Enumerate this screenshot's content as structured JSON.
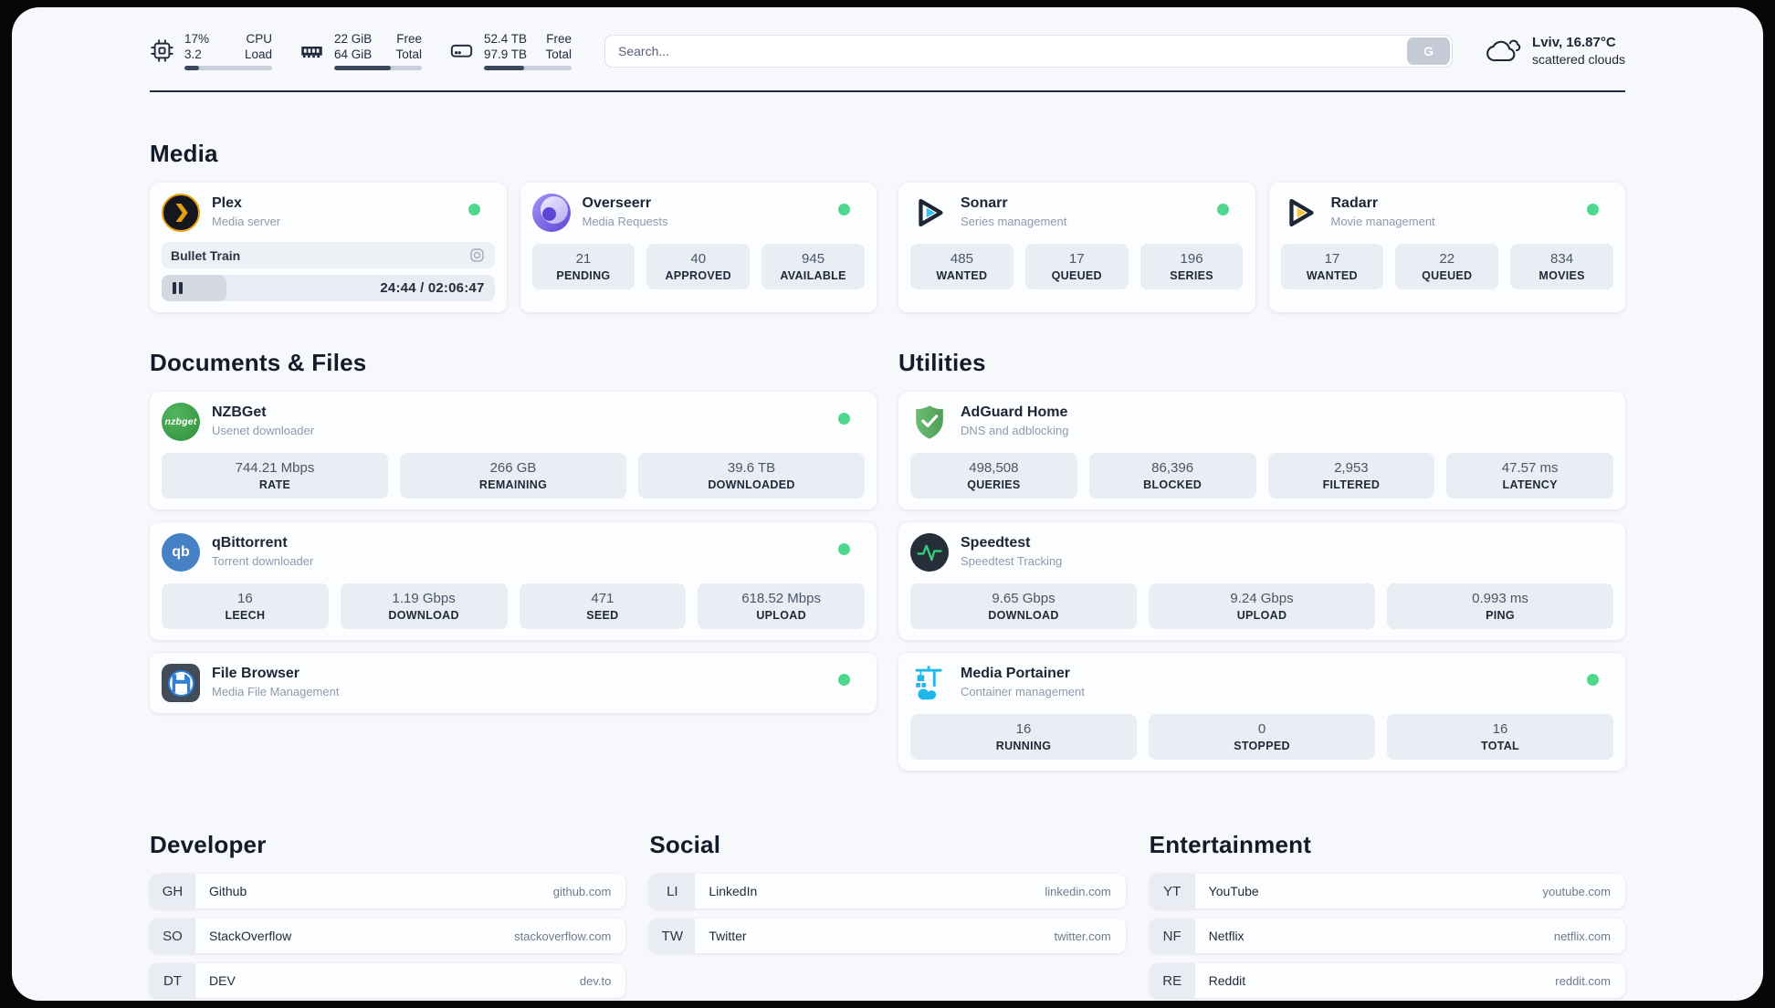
{
  "colors": {
    "frame_bg": "#060606",
    "page_bg": "#f7f8fb",
    "card_bg": "#fcfdff",
    "tile_bg": "#e9edf4",
    "text_primary": "#1c2534",
    "text_secondary": "#9099ab",
    "status_online": "#4fd78d",
    "accent_plex": "#e8a00c",
    "accent_overseerr": "#6a55dd",
    "accent_sonarr": "#32c3f2",
    "accent_radarr": "#ffc230",
    "accent_nzbget": "#3f9e43",
    "accent_qbittorrent": "#4581c4",
    "accent_adguard": "#5fb066",
    "accent_speedtest": "#35d07f",
    "accent_portainer": "#1fb6ea"
  },
  "header": {
    "system_stats": [
      {
        "icon": "cpu-icon",
        "values": [
          "17%",
          "3.2"
        ],
        "labels": [
          "CPU",
          "Load"
        ],
        "progress_pct": 17
      },
      {
        "icon": "ram-icon",
        "values": [
          "22 GiB",
          "64 GiB"
        ],
        "labels": [
          "Free",
          "Total"
        ],
        "progress_pct": 65
      },
      {
        "icon": "disk-icon",
        "values": [
          "52.4 TB",
          "97.9 TB"
        ],
        "labels": [
          "Free",
          "Total"
        ],
        "progress_pct": 46
      }
    ],
    "search": {
      "placeholder": "Search...",
      "button_label": "G"
    },
    "weather": {
      "headline": "Lviv, 16.87°C",
      "condition": "scattered clouds"
    }
  },
  "sections": {
    "media": {
      "title": "Media",
      "plex": {
        "name": "Plex",
        "description": "Media server",
        "status": "online",
        "now_playing": {
          "title": "Bullet Train",
          "time_display": "24:44 / 02:06:47",
          "progress_pct": 19.5,
          "state": "paused"
        }
      },
      "overseerr": {
        "name": "Overseerr",
        "description": "Media Requests",
        "status": "online",
        "stats": [
          {
            "value": "21",
            "label": "PENDING"
          },
          {
            "value": "40",
            "label": "APPROVED"
          },
          {
            "value": "945",
            "label": "AVAILABLE"
          }
        ]
      },
      "sonarr": {
        "name": "Sonarr",
        "description": "Series management",
        "status": "online",
        "stats": [
          {
            "value": "485",
            "label": "WANTED"
          },
          {
            "value": "17",
            "label": "QUEUED"
          },
          {
            "value": "196",
            "label": "SERIES"
          }
        ]
      },
      "radarr": {
        "name": "Radarr",
        "description": "Movie management",
        "status": "online",
        "stats": [
          {
            "value": "17",
            "label": "WANTED"
          },
          {
            "value": "22",
            "label": "QUEUED"
          },
          {
            "value": "834",
            "label": "MOVIES"
          }
        ]
      }
    },
    "documents": {
      "title": "Documents & Files",
      "nzbget": {
        "name": "NZBGet",
        "description": "Usenet downloader",
        "status": "online",
        "icon_text": "nzbget",
        "stats": [
          {
            "value": "744.21 Mbps",
            "label": "RATE"
          },
          {
            "value": "266 GB",
            "label": "REMAINING"
          },
          {
            "value": "39.6 TB",
            "label": "DOWNLOADED"
          }
        ]
      },
      "qbittorrent": {
        "name": "qBittorrent",
        "description": "Torrent downloader",
        "status": "online",
        "icon_text": "qb",
        "stats": [
          {
            "value": "16",
            "label": "LEECH"
          },
          {
            "value": "1.19 Gbps",
            "label": "DOWNLOAD"
          },
          {
            "value": "471",
            "label": "SEED"
          },
          {
            "value": "618.52 Mbps",
            "label": "UPLOAD"
          }
        ]
      },
      "filebrowser": {
        "name": "File Browser",
        "description": "Media File Management",
        "status": "online"
      }
    },
    "utilities": {
      "title": "Utilities",
      "adguard": {
        "name": "AdGuard Home",
        "description": "DNS and adblocking",
        "stats": [
          {
            "value": "498,508",
            "label": "QUERIES"
          },
          {
            "value": "86,396",
            "label": "BLOCKED"
          },
          {
            "value": "2,953",
            "label": "FILTERED"
          },
          {
            "value": "47.57 ms",
            "label": "LATENCY"
          }
        ]
      },
      "speedtest": {
        "name": "Speedtest",
        "description": "Speedtest Tracking",
        "stats": [
          {
            "value": "9.65 Gbps",
            "label": "DOWNLOAD"
          },
          {
            "value": "9.24 Gbps",
            "label": "UPLOAD"
          },
          {
            "value": "0.993 ms",
            "label": "PING"
          }
        ]
      },
      "portainer": {
        "name": "Media Portainer",
        "description": "Container management",
        "status": "online",
        "stats": [
          {
            "value": "16",
            "label": "RUNNING"
          },
          {
            "value": "0",
            "label": "STOPPED"
          },
          {
            "value": "16",
            "label": "TOTAL"
          }
        ]
      }
    },
    "bookmarks": [
      {
        "title": "Developer",
        "links": [
          {
            "abbr": "GH",
            "name": "Github",
            "url": "github.com"
          },
          {
            "abbr": "SO",
            "name": "StackOverflow",
            "url": "stackoverflow.com"
          },
          {
            "abbr": "DT",
            "name": "DEV",
            "url": "dev.to"
          }
        ]
      },
      {
        "title": "Social",
        "links": [
          {
            "abbr": "LI",
            "name": "LinkedIn",
            "url": "linkedin.com"
          },
          {
            "abbr": "TW",
            "name": "Twitter",
            "url": "twitter.com"
          }
        ]
      },
      {
        "title": "Entertainment",
        "links": [
          {
            "abbr": "YT",
            "name": "YouTube",
            "url": "youtube.com"
          },
          {
            "abbr": "NF",
            "name": "Netflix",
            "url": "netflix.com"
          },
          {
            "abbr": "RE",
            "name": "Reddit",
            "url": "reddit.com"
          }
        ]
      }
    ]
  }
}
